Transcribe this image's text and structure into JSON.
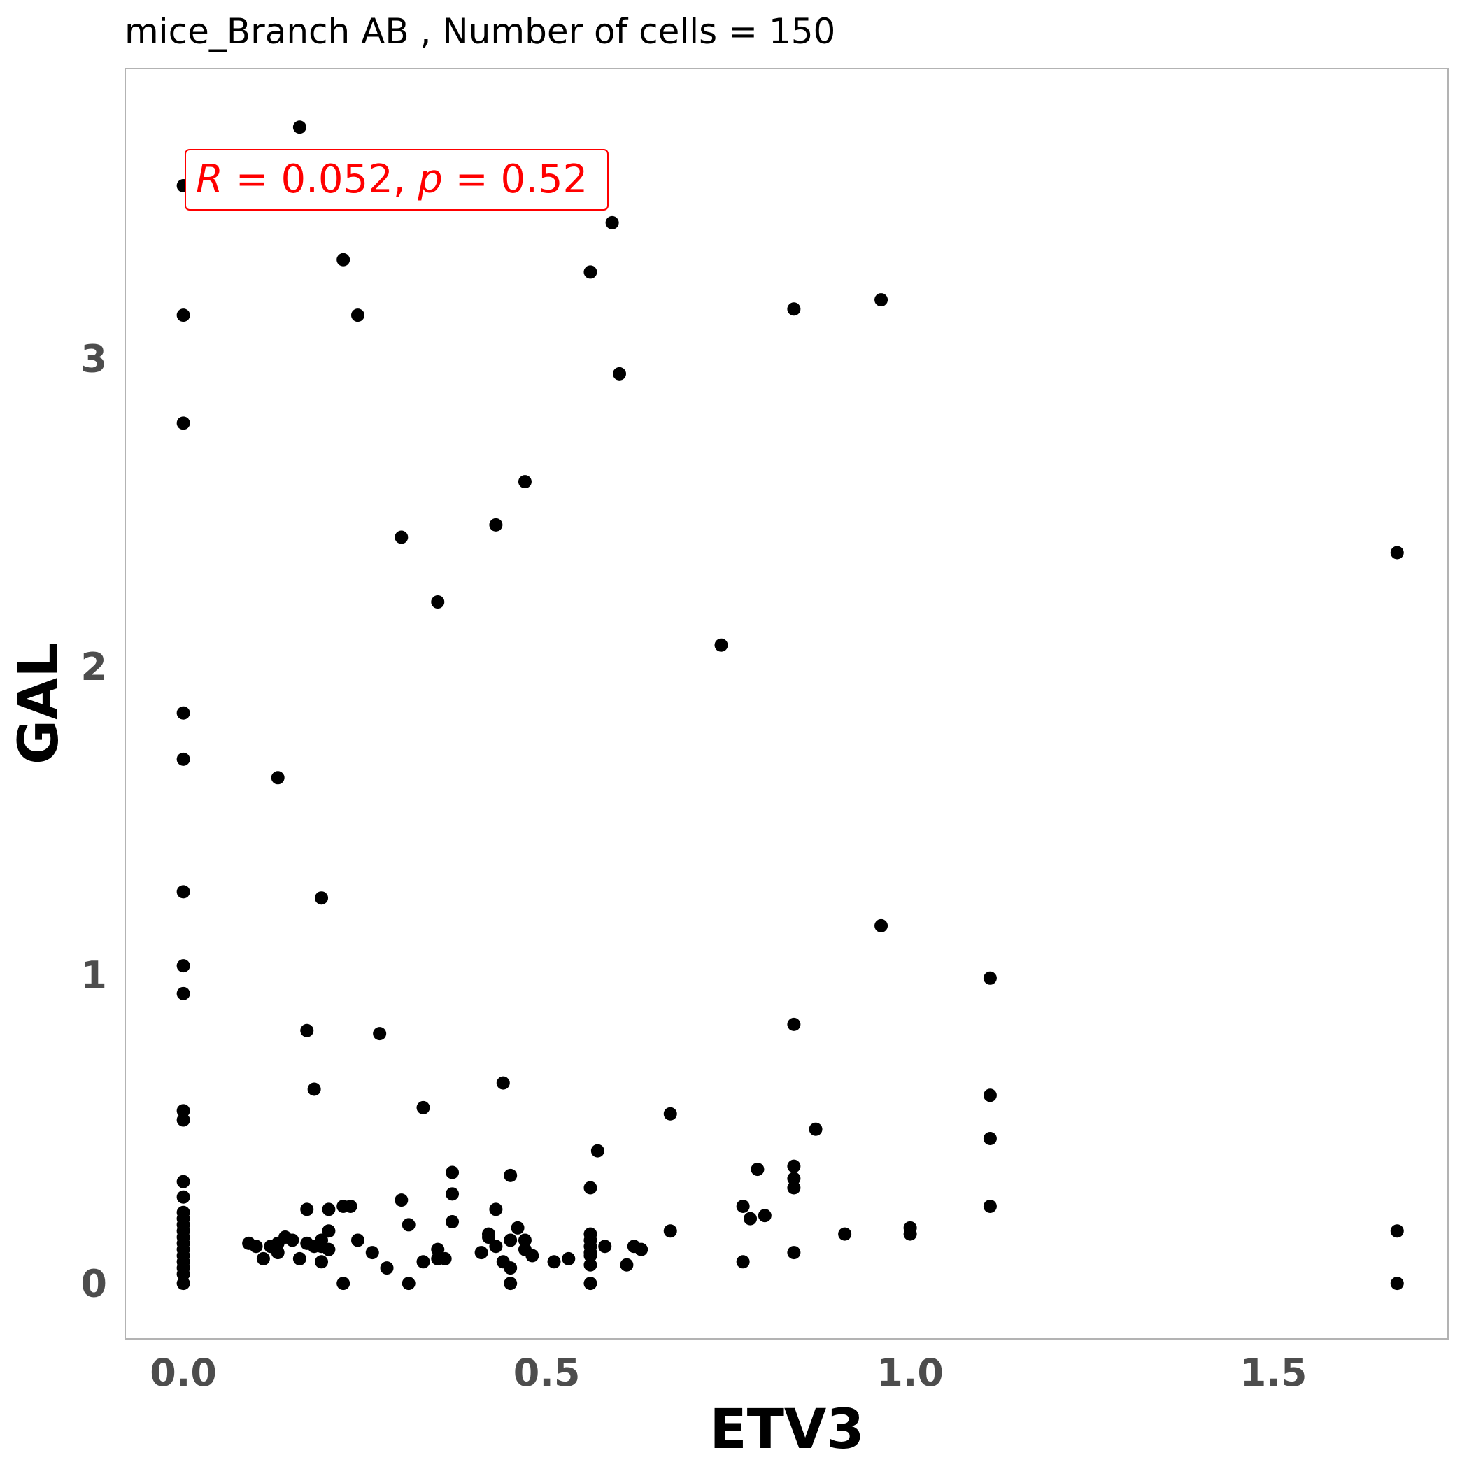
{
  "chart_data": {
    "type": "scatter",
    "title": "mice_Branch AB , Number of cells =  150",
    "xlabel": "ETV3",
    "ylabel": "GAL",
    "xlim": [
      -0.08,
      1.74
    ],
    "ylim": [
      -0.18,
      3.94
    ],
    "x_ticks": [
      0.0,
      0.5,
      1.0,
      1.5
    ],
    "x_tick_labels": [
      "0.0",
      "0.5",
      "1.0",
      "1.5"
    ],
    "y_ticks": [
      0,
      1,
      2,
      3
    ],
    "y_tick_labels": [
      "0",
      "1",
      "2",
      "3"
    ],
    "grid": false,
    "annotation": {
      "r_label": "R",
      "r_value": "0.052",
      "p_label": "p",
      "p_value": "0.52",
      "color": "#ff0000"
    },
    "point_color": "#000000",
    "points": [
      [
        0.0,
        3.56
      ],
      [
        0.0,
        3.14
      ],
      [
        0.0,
        2.79
      ],
      [
        0.0,
        1.85
      ],
      [
        0.0,
        1.7
      ],
      [
        0.0,
        1.27
      ],
      [
        0.0,
        1.03
      ],
      [
        0.0,
        0.94
      ],
      [
        0.0,
        0.56
      ],
      [
        0.0,
        0.53
      ],
      [
        0.0,
        0.33
      ],
      [
        0.0,
        0.28
      ],
      [
        0.0,
        0.23
      ],
      [
        0.0,
        0.21
      ],
      [
        0.0,
        0.19
      ],
      [
        0.0,
        0.17
      ],
      [
        0.0,
        0.15
      ],
      [
        0.0,
        0.13
      ],
      [
        0.0,
        0.11
      ],
      [
        0.0,
        0.09
      ],
      [
        0.0,
        0.07
      ],
      [
        0.0,
        0.05
      ],
      [
        0.0,
        0.03
      ],
      [
        0.0,
        0.0
      ],
      [
        0.16,
        3.75
      ],
      [
        0.22,
        3.32
      ],
      [
        0.24,
        3.14
      ],
      [
        0.56,
        3.28
      ],
      [
        0.59,
        3.44
      ],
      [
        0.6,
        2.95
      ],
      [
        0.84,
        3.16
      ],
      [
        0.96,
        3.19
      ],
      [
        0.3,
        2.42
      ],
      [
        0.43,
        2.46
      ],
      [
        0.47,
        2.6
      ],
      [
        0.35,
        2.21
      ],
      [
        0.74,
        2.07
      ],
      [
        1.67,
        2.37
      ],
      [
        0.13,
        1.64
      ],
      [
        0.19,
        1.25
      ],
      [
        0.96,
        1.16
      ],
      [
        1.11,
        0.99
      ],
      [
        0.17,
        0.82
      ],
      [
        0.27,
        0.81
      ],
      [
        0.84,
        0.84
      ],
      [
        0.18,
        0.63
      ],
      [
        0.33,
        0.57
      ],
      [
        0.44,
        0.65
      ],
      [
        0.67,
        0.55
      ],
      [
        0.87,
        0.5
      ],
      [
        1.11,
        0.61
      ],
      [
        1.11,
        0.47
      ],
      [
        0.57,
        0.43
      ],
      [
        0.37,
        0.36
      ],
      [
        0.45,
        0.35
      ],
      [
        0.56,
        0.31
      ],
      [
        0.79,
        0.37
      ],
      [
        0.84,
        0.38
      ],
      [
        0.84,
        0.34
      ],
      [
        0.84,
        0.31
      ],
      [
        0.3,
        0.27
      ],
      [
        0.37,
        0.29
      ],
      [
        0.22,
        0.25
      ],
      [
        0.23,
        0.25
      ],
      [
        0.17,
        0.24
      ],
      [
        0.2,
        0.24
      ],
      [
        0.43,
        0.24
      ],
      [
        0.77,
        0.25
      ],
      [
        0.78,
        0.21
      ],
      [
        0.8,
        0.22
      ],
      [
        1.11,
        0.25
      ],
      [
        0.31,
        0.19
      ],
      [
        0.37,
        0.2
      ],
      [
        0.46,
        0.18
      ],
      [
        0.42,
        0.16
      ],
      [
        0.56,
        0.16
      ],
      [
        0.67,
        0.17
      ],
      [
        0.91,
        0.16
      ],
      [
        1.0,
        0.18
      ],
      [
        1.0,
        0.16
      ],
      [
        1.67,
        0.17
      ],
      [
        0.09,
        0.13
      ],
      [
        0.1,
        0.12
      ],
      [
        0.11,
        0.08
      ],
      [
        0.12,
        0.12
      ],
      [
        0.13,
        0.1
      ],
      [
        0.13,
        0.13
      ],
      [
        0.14,
        0.15
      ],
      [
        0.15,
        0.14
      ],
      [
        0.16,
        0.08
      ],
      [
        0.17,
        0.13
      ],
      [
        0.18,
        0.12
      ],
      [
        0.19,
        0.12
      ],
      [
        0.19,
        0.07
      ],
      [
        0.19,
        0.14
      ],
      [
        0.2,
        0.11
      ],
      [
        0.2,
        0.17
      ],
      [
        0.22,
        0.0
      ],
      [
        0.24,
        0.14
      ],
      [
        0.26,
        0.1
      ],
      [
        0.28,
        0.05
      ],
      [
        0.31,
        0.0
      ],
      [
        0.33,
        0.07
      ],
      [
        0.35,
        0.08
      ],
      [
        0.35,
        0.11
      ],
      [
        0.36,
        0.08
      ],
      [
        0.41,
        0.1
      ],
      [
        0.42,
        0.15
      ],
      [
        0.43,
        0.12
      ],
      [
        0.44,
        0.07
      ],
      [
        0.45,
        0.05
      ],
      [
        0.45,
        0.14
      ],
      [
        0.45,
        0.0
      ],
      [
        0.47,
        0.14
      ],
      [
        0.47,
        0.11
      ],
      [
        0.48,
        0.09
      ],
      [
        0.51,
        0.07
      ],
      [
        0.53,
        0.08
      ],
      [
        0.56,
        0.12
      ],
      [
        0.56,
        0.1
      ],
      [
        0.56,
        0.09
      ],
      [
        0.56,
        0.06
      ],
      [
        0.56,
        0.14
      ],
      [
        0.56,
        0.0
      ],
      [
        0.58,
        0.12
      ],
      [
        0.61,
        0.06
      ],
      [
        0.62,
        0.12
      ],
      [
        0.63,
        0.11
      ],
      [
        0.77,
        0.07
      ],
      [
        0.84,
        0.1
      ],
      [
        1.67,
        0.0
      ]
    ]
  }
}
